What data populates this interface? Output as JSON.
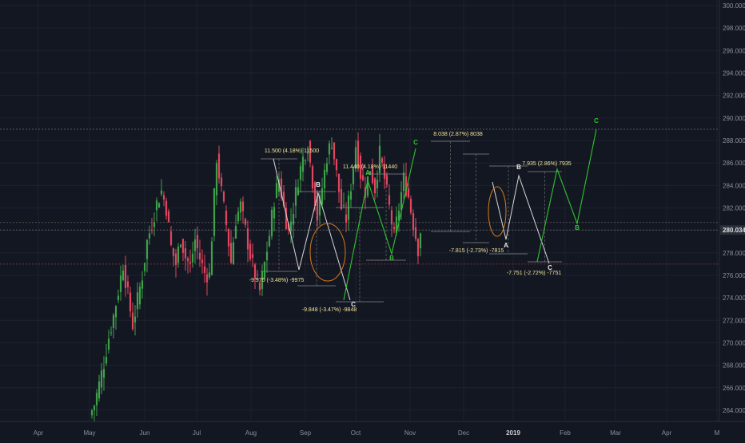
{
  "colors": {
    "background": "#131722",
    "grid": "#1e2230",
    "axis_text": "#8a8f9c",
    "up_candle": "#3fa04a",
    "down_candle": "#e0465e",
    "price_label_bg": "#2b2f3a",
    "price_label_text": "#e0e0e0",
    "measure_text": "#f2e49b",
    "wave_white": "#d9d9d9",
    "wave_green": "#2ec42e",
    "circle": "#d77a18",
    "dashed_grey": "#777777",
    "dashed_red": "#c8334a"
  },
  "chart_data": {
    "type": "candlestick",
    "y_axis": {
      "side": "right",
      "range": [
        263,
        300.5
      ],
      "tick_labels": [
        "300.000",
        "298.000",
        "296.000",
        "294.000",
        "292.000",
        "290.000",
        "288.000",
        "286.000",
        "284.000",
        "282.000",
        "280.000",
        "278.000",
        "276.000",
        "274.000",
        "272.000",
        "270.000",
        "268.000",
        "266.000",
        "264.000"
      ],
      "current_price_label": "280.034",
      "current_price": 280.034
    },
    "x_axis": {
      "tick_labels": [
        {
          "label": "Apr",
          "bold": false
        },
        {
          "label": "May",
          "bold": false
        },
        {
          "label": "Jun",
          "bold": false
        },
        {
          "label": "Jul",
          "bold": false
        },
        {
          "label": "Aug",
          "bold": false
        },
        {
          "label": "Sep",
          "bold": false
        },
        {
          "label": "Oct",
          "bold": false
        },
        {
          "label": "Nov",
          "bold": false
        },
        {
          "label": "Dec",
          "bold": false
        },
        {
          "label": "2019",
          "bold": true
        },
        {
          "label": "Feb",
          "bold": false
        },
        {
          "label": "Mar",
          "bold": false
        },
        {
          "label": "Apr",
          "bold": false
        },
        {
          "label": "M",
          "bold": false
        }
      ]
    },
    "grid": true,
    "horizontal_levels": [
      {
        "price": 289.0,
        "style": "dashed",
        "color": "grey"
      },
      {
        "price": 280.7,
        "style": "dashed",
        "color": "grey"
      },
      {
        "price": 280.034,
        "style": "dashed",
        "color": "grey"
      },
      {
        "price": 277.0,
        "style": "dashed",
        "color": "red"
      }
    ],
    "candles_approx_path": [
      {
        "day": 0,
        "price": 263.5
      },
      {
        "day": 2,
        "price": 264.5
      },
      {
        "day": 4,
        "price": 266.3
      },
      {
        "day": 6,
        "price": 268.2
      },
      {
        "day": 8,
        "price": 270.5
      },
      {
        "day": 10,
        "price": 272.4
      },
      {
        "day": 12,
        "price": 274.6
      },
      {
        "day": 14,
        "price": 277.0
      },
      {
        "day": 16,
        "price": 274.2
      },
      {
        "day": 18,
        "price": 271.6
      },
      {
        "day": 20,
        "price": 273.8
      },
      {
        "day": 22,
        "price": 276.0
      },
      {
        "day": 24,
        "price": 279.0
      },
      {
        "day": 26,
        "price": 280.6
      },
      {
        "day": 28,
        "price": 282.4
      },
      {
        "day": 30,
        "price": 283.5
      },
      {
        "day": 32,
        "price": 282.0
      },
      {
        "day": 34,
        "price": 278.5
      },
      {
        "day": 36,
        "price": 277.0
      },
      {
        "day": 38,
        "price": 279.4
      },
      {
        "day": 40,
        "price": 277.6
      },
      {
        "day": 42,
        "price": 276.8
      },
      {
        "day": 44,
        "price": 279.2
      },
      {
        "day": 46,
        "price": 277.5
      },
      {
        "day": 48,
        "price": 276.2
      },
      {
        "day": 50,
        "price": 276.0
      },
      {
        "day": 52,
        "price": 283.0
      },
      {
        "day": 53,
        "price": 286.5
      },
      {
        "day": 55,
        "price": 283.4
      },
      {
        "day": 57,
        "price": 280.5
      },
      {
        "day": 59,
        "price": 277.2
      },
      {
        "day": 61,
        "price": 281.0
      },
      {
        "day": 63,
        "price": 282.2
      },
      {
        "day": 65,
        "price": 280.0
      },
      {
        "day": 67,
        "price": 277.8
      },
      {
        "day": 69,
        "price": 276.0
      },
      {
        "day": 71,
        "price": 274.6
      },
      {
        "day": 73,
        "price": 277.0
      },
      {
        "day": 75,
        "price": 279.6
      },
      {
        "day": 77,
        "price": 282.8
      },
      {
        "day": 79,
        "price": 284.6
      },
      {
        "day": 81,
        "price": 282.0
      },
      {
        "day": 83,
        "price": 279.8
      },
      {
        "day": 85,
        "price": 282.0
      },
      {
        "day": 87,
        "price": 284.6
      },
      {
        "day": 89,
        "price": 286.4
      },
      {
        "day": 91,
        "price": 287.6
      },
      {
        "day": 93,
        "price": 284.4
      },
      {
        "day": 95,
        "price": 281.2
      },
      {
        "day": 97,
        "price": 283.8
      },
      {
        "day": 99,
        "price": 286.6
      },
      {
        "day": 101,
        "price": 288.0
      },
      {
        "day": 103,
        "price": 285.0
      },
      {
        "day": 105,
        "price": 282.0
      },
      {
        "day": 107,
        "price": 281.0
      },
      {
        "day": 109,
        "price": 284.0
      },
      {
        "day": 111,
        "price": 287.6
      },
      {
        "day": 113,
        "price": 285.0
      },
      {
        "day": 115,
        "price": 283.5
      },
      {
        "day": 117,
        "price": 285.6
      },
      {
        "day": 119,
        "price": 283.7
      },
      {
        "day": 121,
        "price": 286.8
      },
      {
        "day": 123,
        "price": 284.6
      },
      {
        "day": 125,
        "price": 282.0
      },
      {
        "day": 127,
        "price": 279.4
      },
      {
        "day": 129,
        "price": 282.0
      },
      {
        "day": 131,
        "price": 284.6
      },
      {
        "day": 133,
        "price": 283.0
      },
      {
        "day": 135,
        "price": 280.6
      },
      {
        "day": 137,
        "price": 278.4
      },
      {
        "day": 138,
        "price": 280.0
      }
    ],
    "candle_start_x": 112,
    "candle_step": 3.0,
    "annotations": [
      {
        "text": "11.500 (4.18%) 11500",
        "anchor": [
          365,
          191
        ],
        "color": "measure"
      },
      {
        "text": "11.440 (4.18%) 11440",
        "anchor": [
          463,
          211
        ],
        "color": "measure"
      },
      {
        "text": "8.038 (2.87%) 8038",
        "anchor": [
          573,
          170
        ],
        "color": "measure"
      },
      {
        "text": "7.935 (2.86%) 7935",
        "anchor": [
          684,
          207
        ],
        "color": "measure"
      },
      {
        "text": "-9.975 (-3.48%) -9975",
        "anchor": [
          346,
          353
        ],
        "color": "measure"
      },
      {
        "text": "-9.848 (-3.47%) -9848",
        "anchor": [
          412,
          390
        ],
        "color": "measure"
      },
      {
        "text": "-7.815 (-2.73%) -7815",
        "anchor": [
          596,
          316
        ],
        "color": "measure"
      },
      {
        "text": "-7.751 (-2.72%) -7751",
        "anchor": [
          668,
          344
        ],
        "color": "measure"
      }
    ],
    "wave_labels": [
      {
        "text": "B",
        "anchor": [
          398,
          234
        ],
        "color": "white"
      },
      {
        "text": "C",
        "anchor": [
          442,
          384
        ],
        "color": "white"
      },
      {
        "text": "A",
        "anchor": [
          460,
          219
        ],
        "color": "green"
      },
      {
        "text": "B",
        "anchor": [
          490,
          326
        ],
        "color": "green"
      },
      {
        "text": "C",
        "anchor": [
          520,
          181
        ],
        "color": "green"
      },
      {
        "text": "B",
        "anchor": [
          649,
          212
        ],
        "color": "white"
      },
      {
        "text": "A",
        "anchor": [
          633,
          310
        ],
        "color": "white"
      },
      {
        "text": "C",
        "anchor": [
          688,
          338
        ],
        "color": "white"
      },
      {
        "text": "B",
        "anchor": [
          722,
          288
        ],
        "color": "green"
      },
      {
        "text": "C",
        "anchor": [
          746,
          154
        ],
        "color": "green"
      }
    ]
  }
}
